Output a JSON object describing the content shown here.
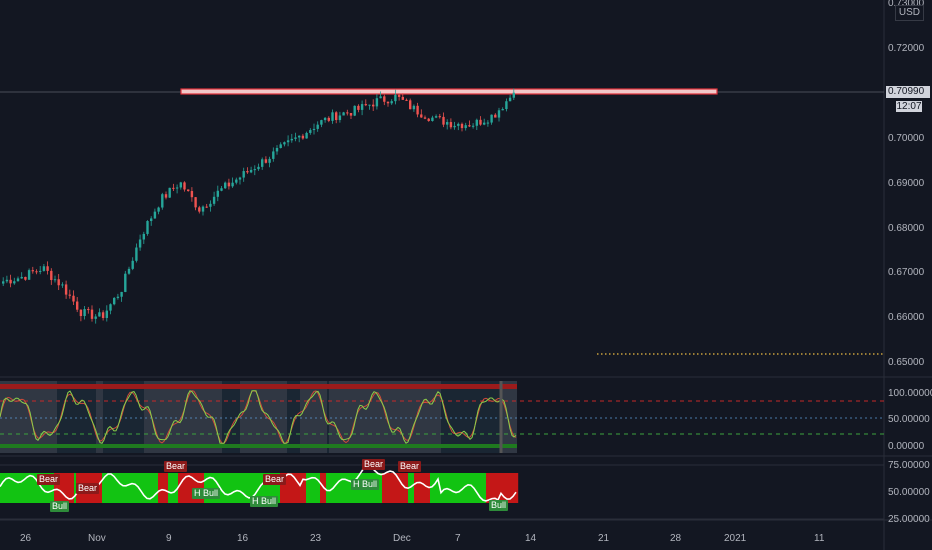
{
  "currency": "USD",
  "last_price": "0.70990",
  "countdown": "12:07",
  "price_axis": {
    "top_partial": "0.73000",
    "labels": [
      "0.72000",
      "0.70000",
      "0.69000",
      "0.68000",
      "0.67000",
      "0.66000",
      "0.65000"
    ]
  },
  "oscillator_axis": [
    "100.00000",
    "50.00000",
    "0.00000"
  ],
  "trend_axis": [
    "75.00000",
    "50.00000",
    "25.00000"
  ],
  "time_axis": [
    "26",
    "Nov",
    "9",
    "16",
    "23",
    "Dec",
    "7",
    "14",
    "21",
    "28",
    "2021",
    "11"
  ],
  "signals": [
    {
      "text": "Bear",
      "type": "bear"
    },
    {
      "text": "Bull",
      "type": "bull"
    },
    {
      "text": "Bear",
      "type": "bear"
    },
    {
      "text": "Bear",
      "type": "bear"
    },
    {
      "text": "H Bull",
      "type": "bull"
    },
    {
      "text": "Bear",
      "type": "bear"
    },
    {
      "text": "H Bull",
      "type": "bull"
    },
    {
      "text": "Bear",
      "type": "bear"
    },
    {
      "text": "H Bull",
      "type": "bull"
    },
    {
      "text": "Bear",
      "type": "bear"
    },
    {
      "text": "Bull",
      "type": "bull"
    }
  ],
  "colors": {
    "background": "#131722",
    "up_candle": "#26a69a",
    "down_candle": "#ef5350",
    "resistance_fill": "#f2c9c9",
    "resistance_border": "#e0303a",
    "support_dots": "#c8a03c",
    "bull_zone": "#12c312",
    "bear_zone": "#c41717"
  },
  "chart_data": {
    "type": "candlestick",
    "instrument_quote": "USD",
    "ylim": [
      0.6505,
      0.7305
    ],
    "last_price": 0.7099,
    "resistance_level": 0.7099,
    "support_level": 0.6516,
    "approx_close_path": [
      0.668,
      0.669,
      0.671,
      0.667,
      0.661,
      0.66,
      0.666,
      0.678,
      0.686,
      0.69,
      0.684,
      0.688,
      0.691,
      0.694,
      0.697,
      0.7,
      0.703,
      0.705,
      0.706,
      0.708,
      0.709,
      0.706,
      0.704,
      0.703,
      0.703,
      0.705,
      0.7099
    ],
    "oscillator_ylim": [
      0,
      100
    ],
    "oscillator_levels": [
      100,
      80,
      50,
      20,
      0
    ],
    "trend_ylim": [
      25,
      75
    ]
  }
}
